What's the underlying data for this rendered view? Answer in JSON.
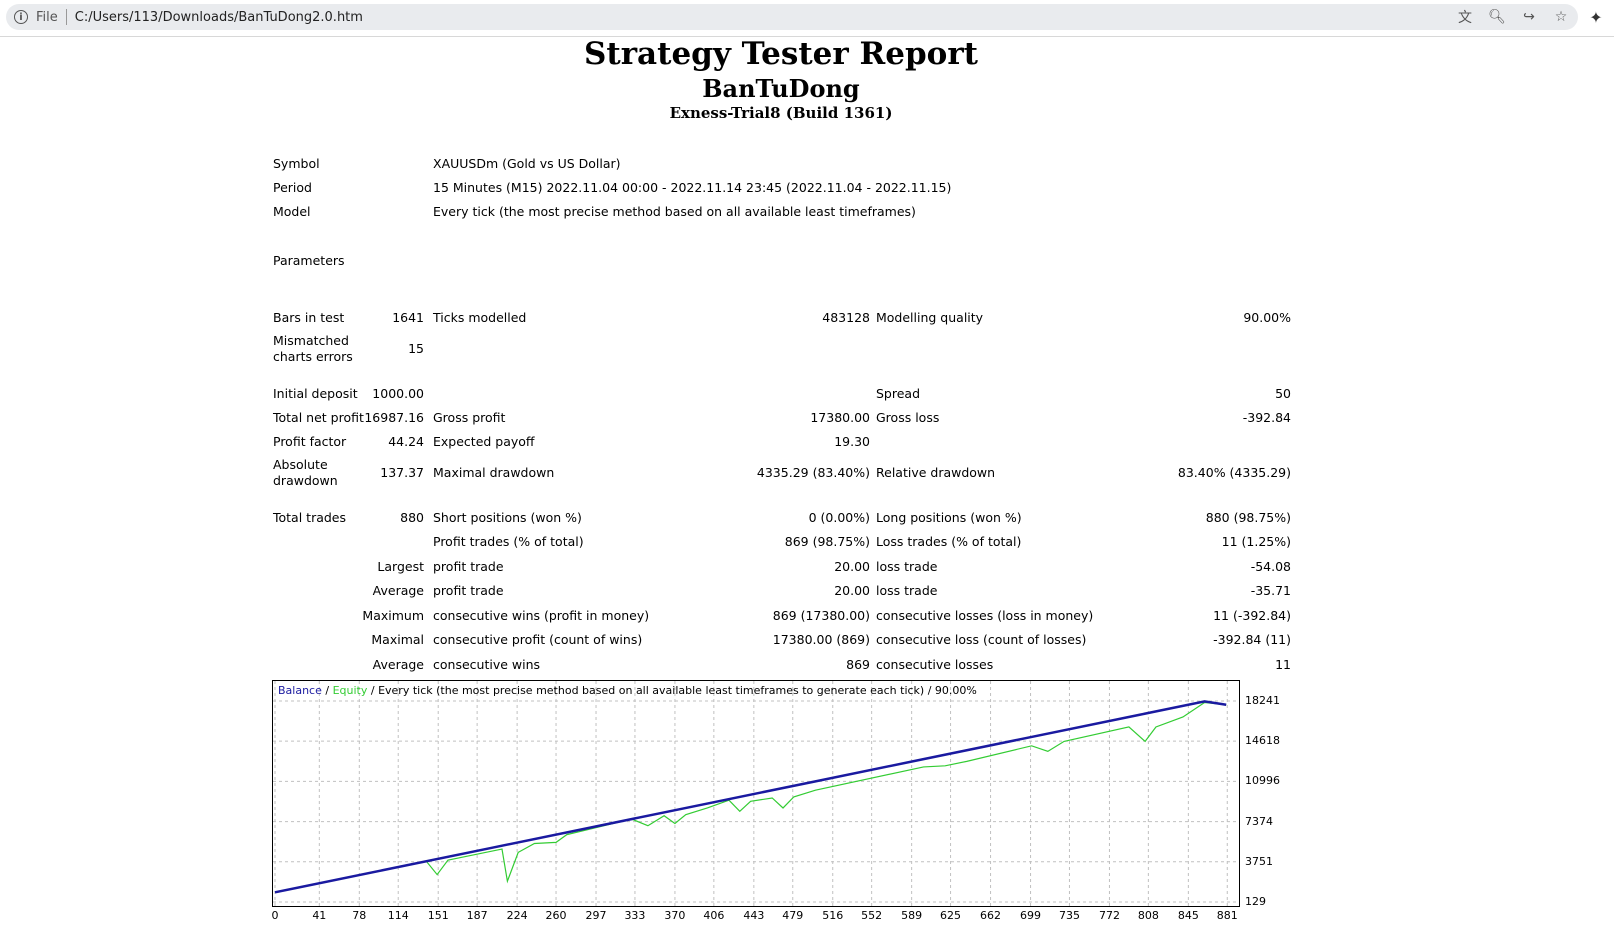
{
  "browser": {
    "scheme": "File",
    "url": "C:/Users/113/Downloads/BanTuDong2.0.htm",
    "tools": [
      "translate-icon",
      "zoom-icon",
      "share-icon",
      "star-icon"
    ]
  },
  "report": {
    "title": "Strategy Tester Report",
    "name": "BanTuDong",
    "server": "Exness-Trial8 (Build 1361)"
  },
  "settings": {
    "symbol_label": "Symbol",
    "symbol_value": "XAUUSDm (Gold vs US Dollar)",
    "period_label": "Period",
    "period_value": "15 Minutes (M15) 2022.11.04 00:00 - 2022.11.14 23:45 (2022.11.04 - 2022.11.15)",
    "model_label": "Model",
    "model_value": "Every tick (the most precise method based on all available least timeframes)",
    "parameters_label": "Parameters"
  },
  "stats": {
    "bars_label": "Bars in test",
    "bars_value": "1641",
    "ticks_label": "Ticks modelled",
    "ticks_value": "483128",
    "quality_label": "Modelling quality",
    "quality_value": "90.00%",
    "mismatch_label_1": "Mismatched",
    "mismatch_label_2": "charts errors",
    "mismatch_value": "15",
    "deposit_label": "Initial deposit",
    "deposit_value": "1000.00",
    "spread_label": "Spread",
    "spread_value": "50",
    "netprofit_label": "Total net profit",
    "netprofit_value": "16987.16",
    "grossprofit_label": "Gross profit",
    "grossprofit_value": "17380.00",
    "grossloss_label": "Gross loss",
    "grossloss_value": "-392.84",
    "pf_label": "Profit factor",
    "pf_value": "44.24",
    "payoff_label": "Expected payoff",
    "payoff_value": "19.30",
    "absdd_label_1": "Absolute",
    "absdd_label_2": "drawdown",
    "absdd_value": "137.37",
    "maxdd_label": "Maximal drawdown",
    "maxdd_value": "4335.29 (83.40%)",
    "reldd_label": "Relative drawdown",
    "reldd_value": "83.40% (4335.29)",
    "trades_label": "Total trades",
    "trades_value": "880",
    "short_label": "Short positions (won %)",
    "short_value": "0 (0.00%)",
    "long_label": "Long positions (won %)",
    "long_value": "880 (98.75%)",
    "profittrades_label": "Profit trades (% of total)",
    "profittrades_value": "869 (98.75%)",
    "losstrades_label": "Loss trades (% of total)",
    "losstrades_value": "11 (1.25%)",
    "largest_label": "Largest",
    "largest_profit_label": "profit trade",
    "largest_profit_value": "20.00",
    "largest_loss_label": "loss trade",
    "largest_loss_value": "-54.08",
    "average_label": "Average",
    "average_profit_label": "profit trade",
    "average_profit_value": "20.00",
    "average_loss_label": "loss trade",
    "average_loss_value": "-35.71",
    "maximum_label": "Maximum",
    "max_wins_label": "consecutive wins (profit in money)",
    "max_wins_value": "869 (17380.00)",
    "max_losses_label": "consecutive losses (loss in money)",
    "max_losses_value": "11 (-392.84)",
    "maximal_label": "Maximal",
    "maximal_profit_label": "consecutive profit (count of wins)",
    "maximal_profit_value": "17380.00 (869)",
    "maximal_loss_label": "consecutive loss (count of losses)",
    "maximal_loss_value": "-392.84 (11)",
    "avgcons_label": "Average",
    "avgcons_wins_label": "consecutive wins",
    "avgcons_wins_value": "869",
    "avgcons_losses_label": "consecutive losses",
    "avgcons_losses_value": "11"
  },
  "colors": {
    "balance": "#1a1aa0",
    "equity": "#33cc33",
    "grid": "#c0c0c0"
  },
  "chart_data": {
    "type": "line",
    "legend_balance": "Balance",
    "legend_sep": " / ",
    "legend_equity": "Equity",
    "legend_rest": " / Every tick (the most precise method based on all available least timeframes to generate each tick) / 90.00%",
    "x_ticks": [
      "0",
      "41",
      "78",
      "114",
      "151",
      "187",
      "224",
      "260",
      "297",
      "333",
      "370",
      "406",
      "443",
      "479",
      "516",
      "552",
      "589",
      "625",
      "662",
      "699",
      "735",
      "772",
      "808",
      "845",
      "881"
    ],
    "y_ticks": [
      "18241",
      "14618",
      "10996",
      "7374",
      "3751",
      "129"
    ],
    "xlim": [
      0,
      890
    ],
    "ylim": [
      129,
      19500
    ],
    "grid": true,
    "series": [
      {
        "name": "Balance",
        "x": [
          0,
          100,
          200,
          300,
          400,
          500,
          600,
          700,
          800,
          860,
          880
        ],
        "y": [
          1000,
          3000,
          5000,
          7000,
          9000,
          11000,
          13000,
          15000,
          17000,
          18200,
          17900
        ]
      },
      {
        "name": "Equity",
        "x": [
          0,
          140,
          150,
          160,
          175,
          210,
          215,
          225,
          240,
          260,
          270,
          330,
          345,
          360,
          370,
          380,
          400,
          420,
          430,
          440,
          460,
          470,
          480,
          500,
          600,
          620,
          640,
          700,
          715,
          730,
          790,
          805,
          815,
          840,
          860,
          880
        ],
        "y": [
          1000,
          3800,
          2600,
          3900,
          4200,
          4900,
          2000,
          4600,
          5400,
          5500,
          6200,
          7600,
          7000,
          7900,
          7200,
          8000,
          8600,
          9300,
          8300,
          9200,
          9500,
          8600,
          9600,
          10200,
          12300,
          12400,
          12800,
          14200,
          13700,
          14600,
          15900,
          14600,
          15900,
          16800,
          18100,
          17900
        ]
      }
    ]
  }
}
